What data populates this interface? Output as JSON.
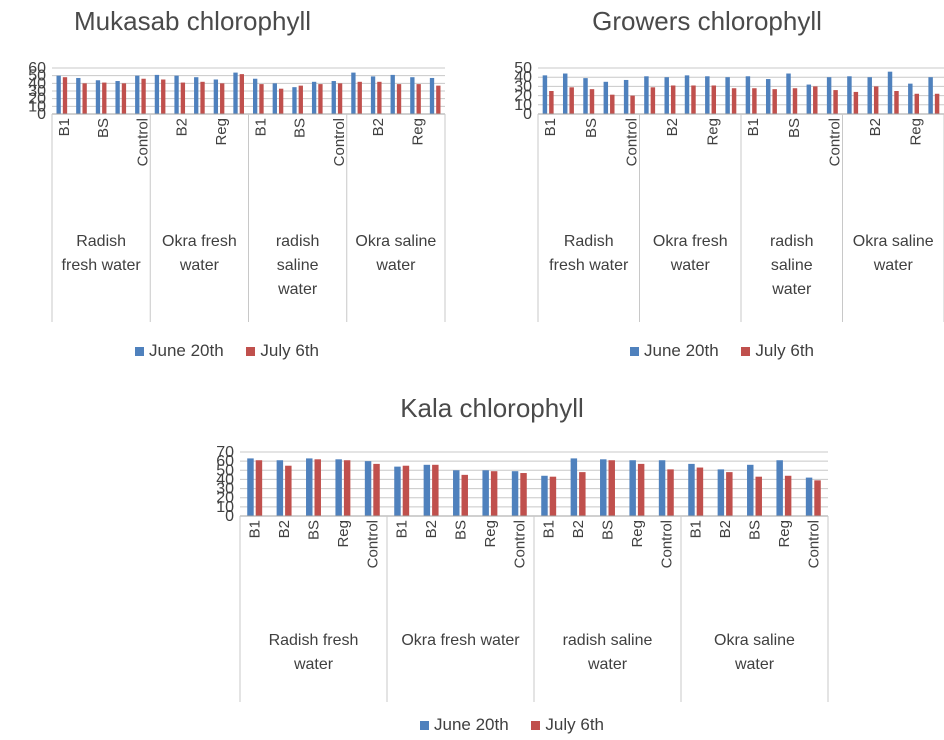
{
  "chart_data": [
    {
      "id": "mukasab",
      "type": "bar",
      "title": "Mukasab chlorophyll",
      "ylim": [
        0,
        60
      ],
      "yticks": [
        0,
        10,
        20,
        30,
        40,
        50,
        60
      ],
      "grid": true,
      "legend_position": "bottom",
      "colors": [
        "#4f81bd",
        "#c0504d"
      ],
      "groups": [
        {
          "label": "Radish fresh water",
          "categories": [
            "B1",
            "B2",
            "BS",
            "Reg",
            "Control"
          ]
        },
        {
          "label": "Okra fresh water",
          "categories": [
            "B1",
            "B2",
            "BS",
            "Reg",
            "Control"
          ]
        },
        {
          "label": "radish saline water",
          "categories": [
            "B1",
            "B2",
            "BS",
            "Reg",
            "Control"
          ]
        },
        {
          "label": "Okra saline water",
          "categories": [
            "B1",
            "B2",
            "BS",
            "Reg",
            "Control"
          ]
        }
      ],
      "visible_tick_labels": [
        "B1",
        "BS",
        "Control",
        "B2",
        "Reg",
        "B1",
        "BS",
        "Control",
        "B2",
        "Reg"
      ],
      "series": [
        {
          "name": "June 20th",
          "values": [
            50,
            47,
            44,
            43,
            50,
            51,
            50,
            48,
            45,
            54,
            46,
            40,
            35,
            42,
            43,
            54,
            49,
            51,
            48,
            47
          ]
        },
        {
          "name": "July 6th",
          "values": [
            48,
            40,
            41,
            40,
            46,
            45,
            41,
            42,
            40,
            52,
            39,
            33,
            37,
            39,
            40,
            42,
            42,
            39,
            39,
            37
          ]
        }
      ]
    },
    {
      "id": "growers",
      "type": "bar",
      "title": "Growers chlorophyll",
      "ylim": [
        0,
        50
      ],
      "yticks": [
        0,
        10,
        20,
        30,
        40,
        50
      ],
      "grid": true,
      "legend_position": "bottom",
      "colors": [
        "#4f81bd",
        "#c0504d"
      ],
      "groups": [
        {
          "label": "Radish fresh water",
          "categories": [
            "B1",
            "B2",
            "BS",
            "Reg",
            "Control"
          ]
        },
        {
          "label": "Okra fresh water",
          "categories": [
            "B1",
            "B2",
            "BS",
            "Reg",
            "Control"
          ]
        },
        {
          "label": "radish saline water",
          "categories": [
            "B1",
            "B2",
            "BS",
            "Reg",
            "Control"
          ]
        },
        {
          "label": "Okra saline water",
          "categories": [
            "B1",
            "B2",
            "BS",
            "Reg",
            "Control"
          ]
        }
      ],
      "visible_tick_labels": [
        "B1",
        "BS",
        "Control",
        "B2",
        "Reg",
        "B1",
        "BS",
        "Control",
        "B2",
        "Reg"
      ],
      "series": [
        {
          "name": "June 20th",
          "values": [
            42,
            44,
            39,
            35,
            37,
            41,
            40,
            42,
            41,
            40,
            41,
            38,
            44,
            32,
            40,
            41,
            40,
            46,
            33,
            40
          ]
        },
        {
          "name": "July 6th",
          "values": [
            25,
            29,
            27,
            21,
            20,
            29,
            31,
            31,
            31,
            28,
            28,
            27,
            28,
            30,
            26,
            24,
            30,
            25,
            22,
            22
          ]
        }
      ]
    },
    {
      "id": "kala",
      "type": "bar",
      "title": "Kala chlorophyll",
      "ylim": [
        0,
        70
      ],
      "yticks": [
        0,
        10,
        20,
        30,
        40,
        50,
        60,
        70
      ],
      "grid": true,
      "legend_position": "bottom",
      "colors": [
        "#4f81bd",
        "#c0504d"
      ],
      "groups": [
        {
          "label": "Radish fresh water",
          "categories": [
            "B1",
            "B2",
            "BS",
            "Reg",
            "Control"
          ]
        },
        {
          "label": "Okra fresh water",
          "categories": [
            "B1",
            "B2",
            "BS",
            "Reg",
            "Control"
          ]
        },
        {
          "label": "radish saline water",
          "categories": [
            "B1",
            "B2",
            "BS",
            "Reg",
            "Control"
          ]
        },
        {
          "label": "Okra saline water",
          "categories": [
            "B1",
            "B2",
            "BS",
            "Reg",
            "Control"
          ]
        }
      ],
      "visible_tick_labels": [
        "B1",
        "B2",
        "BS",
        "Reg",
        "Control",
        "B1",
        "B2",
        "BS",
        "Reg",
        "Control",
        "B1",
        "B2",
        "BS",
        "Reg",
        "Control",
        "B1",
        "B2",
        "BS",
        "Reg",
        "Control"
      ],
      "series": [
        {
          "name": "June 20th",
          "values": [
            63,
            61,
            63,
            62,
            60,
            54,
            56,
            50,
            50,
            49,
            44,
            63,
            62,
            61,
            61,
            57,
            51,
            56,
            61,
            42
          ]
        },
        {
          "name": "July 6th",
          "values": [
            61,
            55,
            62,
            61,
            57,
            55,
            56,
            45,
            49,
            47,
            43,
            48,
            61,
            57,
            51,
            53,
            48,
            43,
            44,
            39
          ]
        }
      ]
    }
  ]
}
